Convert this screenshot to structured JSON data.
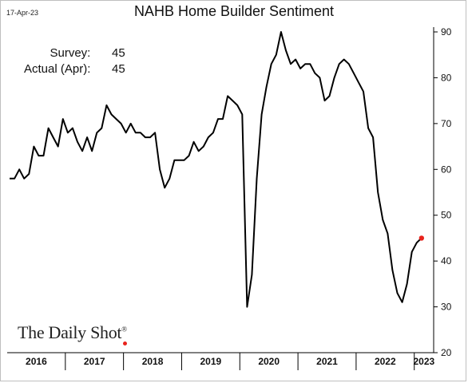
{
  "header": {
    "date": "17-Apr-23",
    "title": "NAHB Home Builder Sentiment"
  },
  "annotation": {
    "survey_label": "Survey:",
    "survey_value": "45",
    "actual_label": "Actual (Apr):",
    "actual_value": "45"
  },
  "logo": {
    "text": "The Daily Shot",
    "mark": "®"
  },
  "colors": {
    "line": "#000000",
    "last_point": "#e8231c",
    "axis": "#000000",
    "logo_dot": "#e8231c"
  },
  "chart_data": {
    "type": "line",
    "title": "NAHB Home Builder Sentiment",
    "x_start": "2016-01",
    "x_end": "2023-04",
    "x_tick_labels": [
      "2016",
      "2017",
      "2018",
      "2019",
      "2020",
      "2021",
      "2022",
      "2023"
    ],
    "ylim": [
      20,
      90
    ],
    "y_ticks": [
      20,
      30,
      40,
      50,
      60,
      70,
      80,
      90
    ],
    "y_axis_side": "right",
    "grid": false,
    "series": [
      {
        "values": [
          58,
          58,
          60,
          58,
          59,
          65,
          63,
          63,
          69,
          67,
          65,
          71,
          68,
          69,
          66,
          64,
          67,
          64,
          68,
          69,
          74,
          72,
          71,
          70,
          68,
          70,
          68,
          68,
          67,
          67,
          68,
          60,
          56,
          58,
          62,
          62,
          62,
          63,
          66,
          64,
          65,
          67,
          68,
          71,
          71,
          76,
          75,
          74,
          72,
          30,
          37,
          58,
          72,
          78,
          83,
          85,
          90,
          86,
          83,
          84,
          82,
          83,
          83,
          81,
          80,
          75,
          76,
          80,
          83,
          84,
          83,
          81,
          79,
          77,
          69,
          67,
          55,
          49,
          46,
          38,
          33,
          31,
          35,
          42,
          44,
          45
        ]
      }
    ]
  }
}
